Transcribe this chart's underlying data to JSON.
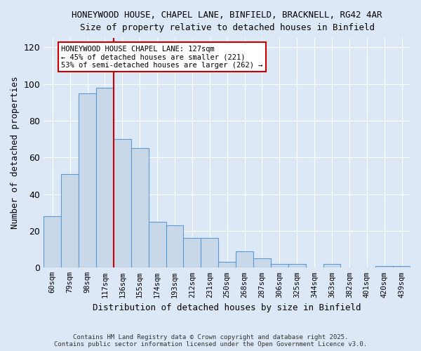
{
  "title_line1": "HONEYWOOD HOUSE, CHAPEL LANE, BINFIELD, BRACKNELL, RG42 4AR",
  "title_line2": "Size of property relative to detached houses in Binfield",
  "xlabel": "Distribution of detached houses by size in Binfield",
  "ylabel": "Number of detached properties",
  "categories": [
    "60sqm",
    "79sqm",
    "98sqm",
    "117sqm",
    "136sqm",
    "155sqm",
    "174sqm",
    "193sqm",
    "212sqm",
    "231sqm",
    "250sqm",
    "268sqm",
    "287sqm",
    "306sqm",
    "325sqm",
    "344sqm",
    "363sqm",
    "382sqm",
    "401sqm",
    "420sqm",
    "439sqm"
  ],
  "values": [
    28,
    51,
    95,
    98,
    70,
    65,
    25,
    23,
    16,
    16,
    3,
    9,
    5,
    2,
    2,
    0,
    2,
    0,
    0,
    1,
    1
  ],
  "bar_color": "#c8d8e8",
  "bar_edge_color": "#5b9bd5",
  "red_line_index": 4,
  "annotation_text": "HONEYWOOD HOUSE CHAPEL LANE: 127sqm\n← 45% of detached houses are smaller (221)\n53% of semi-detached houses are larger (262) →",
  "annotation_box_color": "#ffffff",
  "annotation_box_edge_color": "#cc0000",
  "red_line_color": "#cc0000",
  "background_color": "#dce8f5",
  "grid_color": "#ffffff",
  "ylim": [
    0,
    125
  ],
  "yticks": [
    0,
    20,
    40,
    60,
    80,
    100,
    120
  ],
  "footer_line1": "Contains HM Land Registry data © Crown copyright and database right 2025.",
  "footer_line2": "Contains public sector information licensed under the Open Government Licence v3.0."
}
